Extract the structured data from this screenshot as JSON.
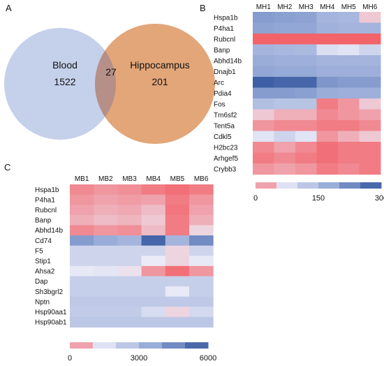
{
  "panels": {
    "a": "A",
    "b": "B",
    "c": "C"
  },
  "chart_data": [
    {
      "type": "venn",
      "sets": [
        {
          "name": "Blood",
          "only": "1522",
          "color": "#c5d0ea"
        },
        {
          "name": "Hippocampus",
          "only": "201",
          "color": "#e2a679"
        }
      ],
      "intersection": "27",
      "intersection_color": "#b58f88"
    },
    {
      "type": "heatmap",
      "columns": [
        "MH1",
        "MH2",
        "MH3",
        "MH4",
        "MH5",
        "MH6"
      ],
      "rows": [
        "Hspa1b",
        "P4ha1",
        "Rubcnl",
        "Banp",
        "Abhd14b",
        "Dnajb1",
        "Arc",
        "Pdia4",
        "Fos",
        "Tm6sf2",
        "Tent5a",
        "Cdkl5",
        "H2bc23",
        "Arhgef5",
        "Crybb3"
      ],
      "values": [
        [
          200,
          195,
          190,
          160,
          155,
          40
        ],
        [
          190,
          185,
          185,
          165,
          160,
          160
        ],
        [
          0,
          0,
          0,
          0,
          0,
          0
        ],
        [
          160,
          155,
          150,
          80,
          70,
          100
        ],
        [
          175,
          170,
          170,
          160,
          160,
          160
        ],
        [
          185,
          180,
          180,
          170,
          170,
          170
        ],
        [
          290,
          280,
          280,
          210,
          200,
          200
        ],
        [
          200,
          200,
          195,
          175,
          170,
          170
        ],
        [
          140,
          130,
          130,
          10,
          20,
          40
        ],
        [
          40,
          30,
          30,
          15,
          20,
          25
        ],
        [
          20,
          15,
          15,
          10,
          10,
          15
        ],
        [
          70,
          100,
          70,
          20,
          30,
          40
        ],
        [
          15,
          25,
          15,
          5,
          10,
          10
        ],
        [
          10,
          15,
          10,
          5,
          10,
          10
        ],
        [
          20,
          25,
          20,
          10,
          15,
          10
        ]
      ],
      "colorbar": {
        "min": 0,
        "max": 300,
        "ticks": [
          0,
          150,
          300
        ]
      }
    },
    {
      "type": "heatmap",
      "columns": [
        "MB1",
        "MB2",
        "MB3",
        "MB4",
        "MB5",
        "MB6"
      ],
      "rows": [
        "Hspa1b",
        "P4ha1",
        "Rubcnl",
        "Banp",
        "Abhd14b",
        "Cd74",
        "F5",
        "Stip1",
        "Ahsa2",
        "Dap",
        "Sh3bgrl2",
        "Nptn",
        "Hsp90aa1",
        "Hsp90ab1"
      ],
      "values": [
        [
          300,
          400,
          350,
          200,
          100,
          200
        ],
        [
          400,
          500,
          450,
          500,
          200,
          400
        ],
        [
          500,
          600,
          550,
          700,
          150,
          500
        ],
        [
          600,
          700,
          650,
          800,
          200,
          600
        ],
        [
          300,
          400,
          350,
          700,
          200,
          900
        ],
        [
          4000,
          3500,
          3200,
          5600,
          3200,
          4500
        ],
        [
          2000,
          2000,
          2000,
          2000,
          900,
          2000
        ],
        [
          2000,
          2000,
          2000,
          1100,
          900,
          1200
        ],
        [
          1200,
          1300,
          1000,
          400,
          100,
          400
        ],
        [
          2200,
          2200,
          2200,
          2200,
          2200,
          2200
        ],
        [
          2200,
          2200,
          2200,
          2200,
          1200,
          2200
        ],
        [
          2400,
          2400,
          2400,
          2400,
          2400,
          2400
        ],
        [
          2300,
          2300,
          2300,
          1700,
          900,
          1800
        ],
        [
          2500,
          2500,
          2500,
          2500,
          2500,
          2500
        ]
      ],
      "colorbar": {
        "min": 0,
        "max": 6000,
        "ticks": [
          0,
          3000,
          6000
        ]
      }
    }
  ]
}
